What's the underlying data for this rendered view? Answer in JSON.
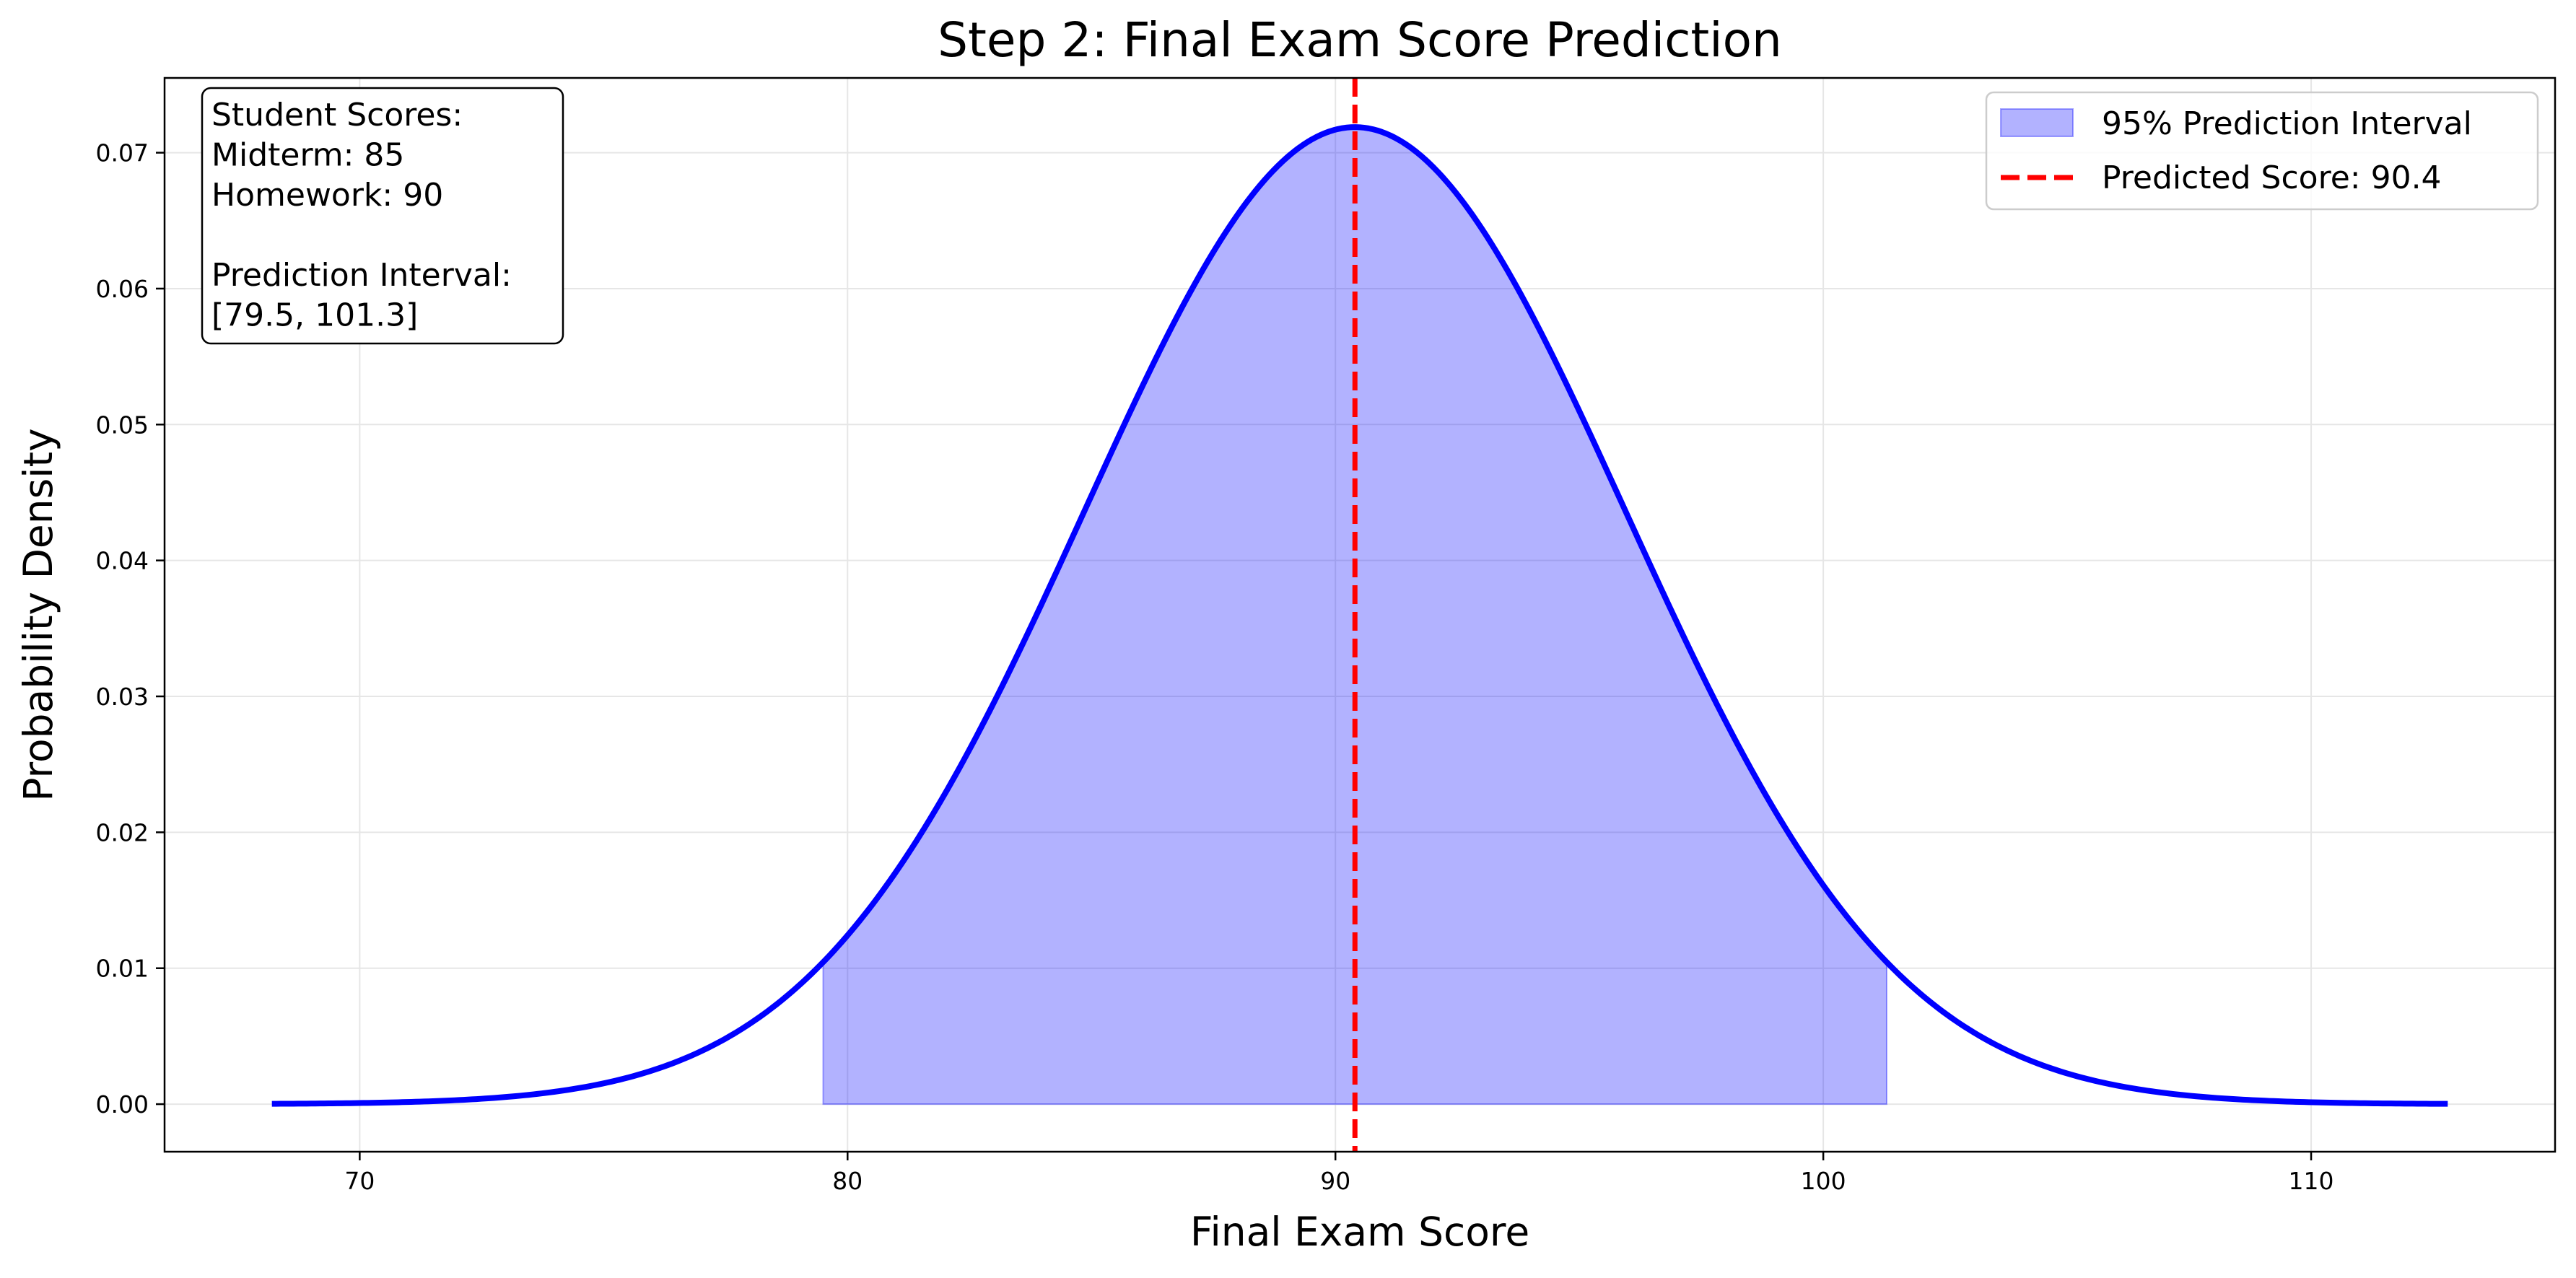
{
  "chart_data": {
    "type": "area",
    "title": "Step 2: Final Exam Score Prediction",
    "xlabel": "Final Exam Score",
    "ylabel": "Probability Density",
    "xlim": [
      66,
      115
    ],
    "ylim": [
      -0.0035,
      0.0755
    ],
    "x_ticks": [
      70,
      80,
      90,
      100,
      110
    ],
    "y_ticks": [
      0.0,
      0.01,
      0.02,
      0.03,
      0.04,
      0.05,
      0.06,
      0.07
    ],
    "x_tick_labels": [
      "70",
      "80",
      "90",
      "100",
      "110"
    ],
    "y_tick_labels": [
      "0.00",
      "0.01",
      "0.02",
      "0.03",
      "0.04",
      "0.05",
      "0.06",
      "0.07"
    ],
    "grid": true,
    "legend_position": "top-right",
    "curve": {
      "distribution": "normal",
      "mean": 90.4,
      "std": 5.55,
      "x_range": [
        68.2,
        112.8
      ],
      "color": "#0000ff"
    },
    "prediction_interval": {
      "lower": 79.5,
      "upper": 101.3,
      "fill_color": "#0000ff",
      "fill_opacity": 0.3,
      "legend_label": "95% Prediction Interval"
    },
    "predicted_line": {
      "x": 90.4,
      "color": "#ff0000",
      "style": "dashed",
      "legend_label": "Predicted Score: 90.4"
    },
    "info_box": {
      "lines": [
        "Student Scores:",
        "Midterm: 85",
        "Homework: 90",
        "",
        "Prediction Interval:",
        "[79.5, 101.3]"
      ]
    }
  }
}
